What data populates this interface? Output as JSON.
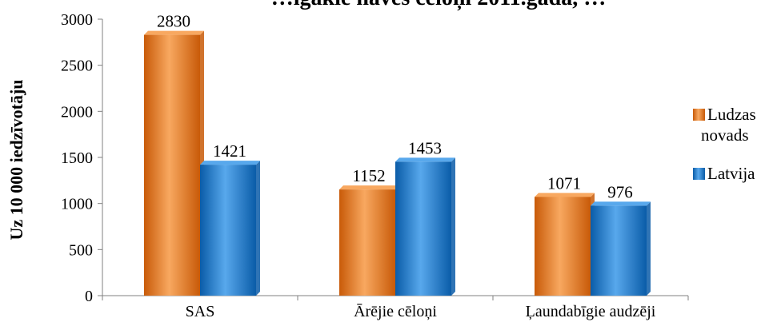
{
  "chart_data": {
    "type": "bar",
    "title": "…īgākie nāves cēloņi 2011.gadā, …",
    "xlabel": "",
    "ylabel": "Uz 10 000 iedzīvotāju",
    "ylim": [
      0,
      3000
    ],
    "yticks": [
      0,
      500,
      1000,
      1500,
      2000,
      2500,
      3000
    ],
    "categories": [
      "SAS",
      "Ārējie cēloņi",
      "Ļaundabīgie audzēji"
    ],
    "series": [
      {
        "name": "Ludzas novads",
        "legend_lines": [
          "Ludzas",
          "novads"
        ],
        "values": [
          2830,
          1152,
          1071
        ],
        "color": "#f07818",
        "color_light": "#f8a860",
        "color_dark": "#c85a08"
      },
      {
        "name": "Latvija",
        "legend_lines": [
          "Latvija"
        ],
        "values": [
          1421,
          1453,
          976
        ],
        "color": "#1a7fd8",
        "color_light": "#58a8ec",
        "color_dark": "#0a5ca8"
      }
    ],
    "grid": false,
    "legend_position": "right",
    "data_labels": true
  }
}
